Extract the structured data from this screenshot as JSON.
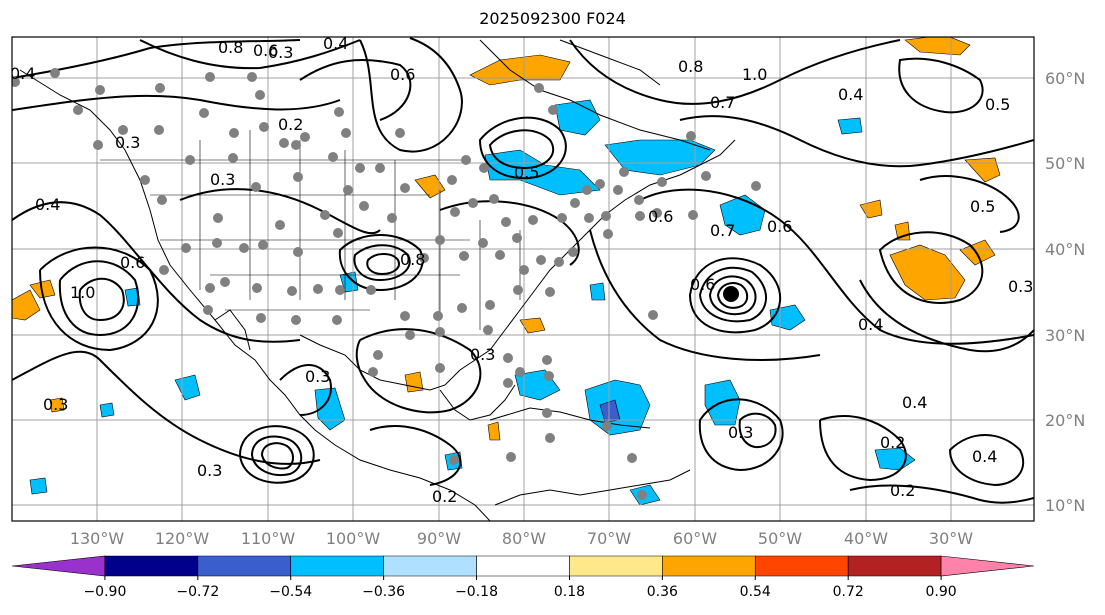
{
  "title": "2025092300 F024",
  "lat_labels": [
    "60°N",
    "50°N",
    "40°N",
    "30°N",
    "20°N",
    "10°N"
  ],
  "lon_labels": [
    "130°W",
    "120°W",
    "110°W",
    "100°W",
    "90°W",
    "80°W",
    "70°W",
    "60°W",
    "50°W",
    "40°W",
    "30°W"
  ],
  "colorbar": {
    "colors": [
      "#9932cc",
      "#00008b",
      "#3a5fcd",
      "#00bfff",
      "#b0e0ff",
      "#ffffff",
      "#ffe88a",
      "#ffa500",
      "#ff4500",
      "#b22222",
      "#ff82ab"
    ],
    "tick_labels": [
      "−0.90",
      "−0.72",
      "−0.54",
      "−0.36",
      "−0.18",
      "0.18",
      "0.36",
      "0.54",
      "0.72",
      "0.90"
    ]
  },
  "contour_labels": [
    "0.8",
    "0.6",
    "0.4",
    "0.2",
    "0.3",
    "0.4",
    "0.6",
    "0.8",
    "1.0",
    "0.7",
    "0.3",
    "0.5",
    "0.4",
    "0.3",
    "0.3",
    "0.2",
    "0.4",
    "0.6",
    "0.5",
    "0.6",
    "0.3",
    "0.3",
    "0.4",
    "0.4",
    "0.3",
    "0.3",
    "0.2",
    "0.3",
    "0.2",
    "0.4",
    "0.5",
    "0.6",
    "0.8",
    "1.0",
    "0.6",
    "0.7"
  ]
}
